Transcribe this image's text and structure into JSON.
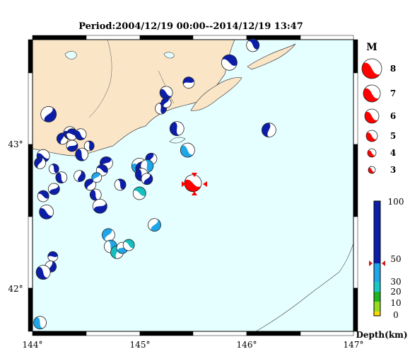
{
  "title": "Period:2004/12/19 00:00--2014/12/19 13:47",
  "axis": {
    "lon_ticks": [
      "144°",
      "145°",
      "146°",
      "147°"
    ],
    "lat_ticks": [
      "43°",
      "42°"
    ]
  },
  "legend_magnitude": {
    "heading": "M",
    "labels": [
      "8",
      "7",
      "6",
      "5",
      "4",
      "3"
    ]
  },
  "legend_depth": {
    "ticks": [
      "100",
      "50",
      "30",
      "20",
      "10",
      "0"
    ],
    "unit_label": "Depth(km)"
  },
  "colors": {
    "ocean": "#e5feff",
    "land": "#fae5c7",
    "deep": "#0c1ea8",
    "mid": "#1fa6e8",
    "shallow": "#14bfbf",
    "highlight": "#ff0000"
  },
  "events": [
    {
      "lon": 145.5,
      "lat": 42.74,
      "r": 12,
      "color": "highlight",
      "rot": 20
    },
    {
      "lon": 145.84,
      "lat": 43.58,
      "r": 11,
      "color": "deep",
      "rot": 200
    },
    {
      "lon": 145.46,
      "lat": 43.44,
      "r": 8,
      "color": "deep",
      "rot": 160
    },
    {
      "lon": 145.25,
      "lat": 43.37,
      "r": 9,
      "color": "deep",
      "rot": 30
    },
    {
      "lon": 145.2,
      "lat": 43.26,
      "r": 8,
      "color": "deep",
      "rot": 250
    },
    {
      "lon": 145.25,
      "lat": 43.3,
      "r": 7,
      "color": "deep",
      "rot": 120
    },
    {
      "lon": 145.35,
      "lat": 43.12,
      "r": 10,
      "color": "deep",
      "rot": 70
    },
    {
      "lon": 146.21,
      "lat": 43.11,
      "r": 10,
      "color": "deep",
      "rot": 90
    },
    {
      "lon": 146.06,
      "lat": 43.7,
      "r": 9,
      "color": "deep",
      "rot": 220
    },
    {
      "lon": 144.15,
      "lat": 43.22,
      "r": 11,
      "color": "deep",
      "rot": 300
    },
    {
      "lon": 144.28,
      "lat": 43.05,
      "r": 8,
      "color": "deep",
      "rot": 100
    },
    {
      "lon": 144.35,
      "lat": 43.09,
      "r": 9,
      "color": "deep",
      "rot": 10
    },
    {
      "lon": 144.37,
      "lat": 43.08,
      "r": 8,
      "color": "deep",
      "rot": 180
    },
    {
      "lon": 144.45,
      "lat": 43.08,
      "r": 8,
      "color": "deep",
      "rot": 40
    },
    {
      "lon": 144.53,
      "lat": 43.0,
      "r": 7,
      "color": "deep",
      "rot": 250
    },
    {
      "lon": 144.37,
      "lat": 43.0,
      "r": 8,
      "color": "deep",
      "rot": 330
    },
    {
      "lon": 144.46,
      "lat": 42.94,
      "r": 9,
      "color": "deep",
      "rot": 60
    },
    {
      "lon": 144.69,
      "lat": 42.88,
      "r": 9,
      "color": "deep",
      "rot": 140
    },
    {
      "lon": 144.65,
      "lat": 42.83,
      "r": 8,
      "color": "deep",
      "rot": 200
    },
    {
      "lon": 144.44,
      "lat": 42.79,
      "r": 8,
      "color": "deep",
      "rot": 280
    },
    {
      "lon": 144.54,
      "lat": 42.73,
      "r": 8,
      "color": "deep",
      "rot": 120
    },
    {
      "lon": 144.59,
      "lat": 42.66,
      "r": 8,
      "color": "deep",
      "rot": 60
    },
    {
      "lon": 144.63,
      "lat": 42.58,
      "r": 10,
      "color": "deep",
      "rot": 330
    },
    {
      "lon": 144.1,
      "lat": 42.93,
      "r": 9,
      "color": "deep",
      "rot": 20
    },
    {
      "lon": 144.07,
      "lat": 42.88,
      "r": 8,
      "color": "deep",
      "rot": 110
    },
    {
      "lon": 144.2,
      "lat": 42.84,
      "r": 7,
      "color": "deep",
      "rot": 240
    },
    {
      "lon": 144.27,
      "lat": 42.78,
      "r": 8,
      "color": "deep",
      "rot": 60
    },
    {
      "lon": 144.2,
      "lat": 42.7,
      "r": 8,
      "color": "deep",
      "rot": 320
    },
    {
      "lon": 144.1,
      "lat": 42.65,
      "r": 8,
      "color": "deep",
      "rot": 200
    },
    {
      "lon": 144.13,
      "lat": 42.54,
      "r": 10,
      "color": "deep",
      "rot": 30
    },
    {
      "lon": 144.19,
      "lat": 42.23,
      "r": 7,
      "color": "deep",
      "rot": 170
    },
    {
      "lon": 144.17,
      "lat": 42.16,
      "r": 8,
      "color": "deep",
      "rot": 280
    },
    {
      "lon": 144.1,
      "lat": 42.12,
      "r": 10,
      "color": "deep",
      "rot": 50
    },
    {
      "lon": 144.82,
      "lat": 42.73,
      "r": 8,
      "color": "deep",
      "rot": 240
    },
    {
      "lon": 145.11,
      "lat": 42.91,
      "r": 8,
      "color": "deep",
      "rot": 110
    },
    {
      "lon": 145.0,
      "lat": 42.86,
      "r": 11,
      "color": "mid",
      "rot": 10
    },
    {
      "lon": 145.03,
      "lat": 42.84,
      "r": 10,
      "color": "deep",
      "rot": 150
    },
    {
      "lon": 145.07,
      "lat": 42.86,
      "r": 9,
      "color": "mid",
      "rot": 250
    },
    {
      "lon": 145.02,
      "lat": 42.8,
      "r": 9,
      "color": "deep",
      "rot": 60
    },
    {
      "lon": 145.07,
      "lat": 42.77,
      "r": 8,
      "color": "deep",
      "rot": 300
    },
    {
      "lon": 144.6,
      "lat": 42.78,
      "r": 7,
      "color": "mid",
      "rot": 130
    },
    {
      "lon": 145.0,
      "lat": 42.67,
      "r": 9,
      "color": "shallow",
      "rot": 200
    },
    {
      "lon": 145.45,
      "lat": 42.97,
      "r": 10,
      "color": "mid",
      "rot": 40
    },
    {
      "lon": 145.14,
      "lat": 42.45,
      "r": 9,
      "color": "mid",
      "rot": 300
    },
    {
      "lon": 144.71,
      "lat": 42.38,
      "r": 9,
      "color": "mid",
      "rot": 120
    },
    {
      "lon": 144.73,
      "lat": 42.3,
      "r": 9,
      "color": "mid",
      "rot": 240
    },
    {
      "lon": 144.79,
      "lat": 42.26,
      "r": 9,
      "color": "shallow",
      "rot": 90
    },
    {
      "lon": 144.84,
      "lat": 42.29,
      "r": 8,
      "color": "mid",
      "rot": 330
    },
    {
      "lon": 144.9,
      "lat": 42.31,
      "r": 8,
      "color": "shallow",
      "rot": 210
    },
    {
      "lon": 144.07,
      "lat": 41.77,
      "r": 9,
      "color": "mid",
      "rot": 60
    }
  ]
}
